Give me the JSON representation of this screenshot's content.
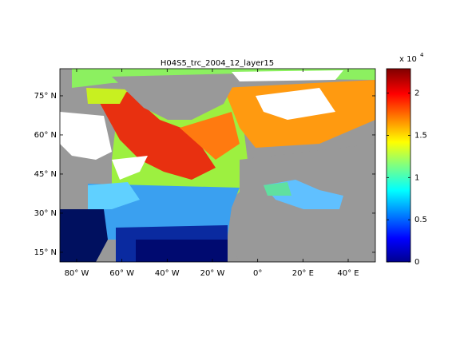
{
  "map": {
    "title": "H04S5_trc_2004_12_layer15",
    "xlim": [
      -87.4,
      52
    ],
    "ylim": [
      11.3,
      85.4
    ],
    "xticks": [
      {
        "value": -80,
        "label": "80° W"
      },
      {
        "value": -60,
        "label": "60° W"
      },
      {
        "value": -40,
        "label": "40° W"
      },
      {
        "value": -20,
        "label": "20° W"
      },
      {
        "value": 0,
        "label": "0°"
      },
      {
        "value": 20,
        "label": "20° E"
      },
      {
        "value": 40,
        "label": "40° E"
      }
    ],
    "yticks": [
      {
        "value": 15,
        "label": "15° N"
      },
      {
        "value": 30,
        "label": "30° N"
      },
      {
        "value": 45,
        "label": "45° N"
      },
      {
        "value": 60,
        "label": "60° N"
      },
      {
        "value": 75,
        "label": "75° N"
      }
    ],
    "colorbar": {
      "clim": [
        0,
        2.29
      ],
      "ticks": [
        0,
        0.5,
        1,
        1.5,
        2
      ],
      "multiplier": "x 10",
      "exponent": "4"
    }
  }
}
